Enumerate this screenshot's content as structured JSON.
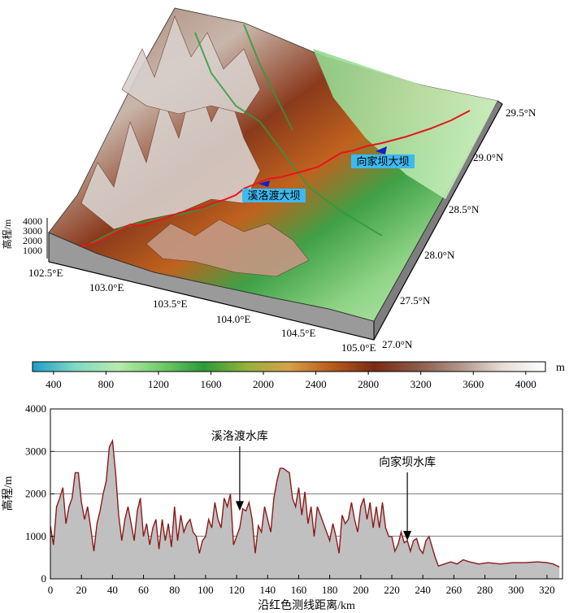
{
  "map": {
    "elev_axis_label": "高程/m",
    "elev_ticks": [
      "4000",
      "3000",
      "2000",
      "1000"
    ],
    "lon_labels": [
      "102.5°E",
      "103.0°E",
      "103.5°E",
      "104.0°E",
      "104.5°E",
      "105.0°E"
    ],
    "lat_labels": [
      "27.0°N",
      "27.5°N",
      "28.0°N",
      "28.5°N",
      "29.0°N",
      "29.5°N"
    ],
    "dams": [
      {
        "label": "溪洛渡大坝"
      },
      {
        "label": "向家坝大坝"
      }
    ],
    "profile_line_color": "#e8141c",
    "dam_marker_color": "#1020c8",
    "label_box_color": "#3db8f0"
  },
  "colorbar": {
    "unit": "m",
    "ticks": [
      "400",
      "800",
      "1200",
      "1600",
      "2000",
      "2400",
      "2800",
      "3200",
      "3600",
      "4000"
    ],
    "stops": [
      "#1e9ec8",
      "#7fd9c4",
      "#b6ebae",
      "#74cc6a",
      "#2c9a3a",
      "#93b23a",
      "#d6a04a",
      "#b85c1c",
      "#7a2a14",
      "#8a5a48",
      "#b09488",
      "#e6ddd6",
      "#ffffff"
    ]
  },
  "chart_data": {
    "type": "area",
    "xlabel": "沿红色测线距离/km",
    "ylabel": "高程/m",
    "xlim": [
      0,
      330
    ],
    "ylim": [
      0,
      4000
    ],
    "xticks": [
      0,
      20,
      40,
      60,
      80,
      100,
      120,
      140,
      160,
      180,
      200,
      220,
      240,
      260,
      280,
      300,
      320
    ],
    "yticks": [
      0,
      1000,
      2000,
      3000,
      4000
    ],
    "grid": "horizontal",
    "line_color": "#8b1a1a",
    "fill_color": "#c0c0c0",
    "annotations": [
      {
        "text": "溪洛渡水库",
        "x": 122,
        "y": 1600
      },
      {
        "text": "向家坝水库",
        "x": 230,
        "y": 900
      }
    ],
    "x": [
      0,
      2,
      4,
      6,
      8,
      10,
      12,
      14,
      16,
      18,
      20,
      22,
      24,
      26,
      28,
      30,
      32,
      34,
      36,
      38,
      40,
      42,
      44,
      46,
      48,
      50,
      52,
      54,
      56,
      58,
      60,
      62,
      64,
      66,
      68,
      70,
      72,
      74,
      76,
      78,
      80,
      82,
      84,
      86,
      88,
      90,
      92,
      94,
      96,
      98,
      100,
      102,
      104,
      106,
      108,
      110,
      112,
      114,
      116,
      118,
      120,
      122,
      124,
      126,
      128,
      130,
      132,
      134,
      136,
      138,
      140,
      142,
      144,
      146,
      148,
      150,
      152,
      154,
      156,
      158,
      160,
      162,
      164,
      166,
      168,
      170,
      172,
      174,
      176,
      178,
      180,
      182,
      184,
      186,
      188,
      190,
      192,
      194,
      196,
      198,
      200,
      202,
      204,
      206,
      208,
      210,
      212,
      214,
      216,
      218,
      220,
      222,
      224,
      226,
      228,
      230,
      232,
      234,
      236,
      238,
      240,
      242,
      244,
      246,
      248,
      250,
      254,
      258,
      262,
      266,
      270,
      276,
      282,
      290,
      298,
      306,
      314,
      320,
      324,
      328
    ],
    "y": [
      1250,
      800,
      1700,
      1900,
      2150,
      1300,
      1700,
      1900,
      2500,
      2500,
      1800,
      1400,
      1700,
      1200,
      650,
      1300,
      1600,
      2000,
      2300,
      3100,
      3250,
      2500,
      1500,
      900,
      1400,
      1700,
      1300,
      900,
      1600,
      1900,
      1000,
      1300,
      800,
      1200,
      1400,
      700,
      1400,
      900,
      1300,
      750,
      1700,
      900,
      1500,
      1100,
      1300,
      1400,
      1100,
      1000,
      600,
      900,
      1000,
      1400,
      1200,
      1800,
      1400,
      1200,
      1900,
      1700,
      2000,
      800,
      1000,
      1200,
      1650,
      1600,
      1800,
      1400,
      600,
      1250,
      1100,
      1700,
      1400,
      1100,
      1900,
      2300,
      2600,
      2600,
      2550,
      2500,
      1900,
      1700,
      2150,
      1500,
      2050,
      1300,
      1700,
      1000,
      1700,
      1500,
      1300,
      1100,
      900,
      1300,
      1000,
      600,
      1500,
      1300,
      1400,
      1800,
      1400,
      1100,
      1700,
      1900,
      1400,
      1800,
      1200,
      1700,
      1200,
      1800,
      1200,
      1000,
      1000,
      650,
      800,
      1100,
      850,
      900,
      650,
      900,
      950,
      700,
      600,
      900,
      1000,
      750,
      500,
      300,
      350,
      400,
      350,
      450,
      400,
      350,
      380,
      350,
      380,
      380,
      400,
      380,
      350,
      280
    ]
  }
}
